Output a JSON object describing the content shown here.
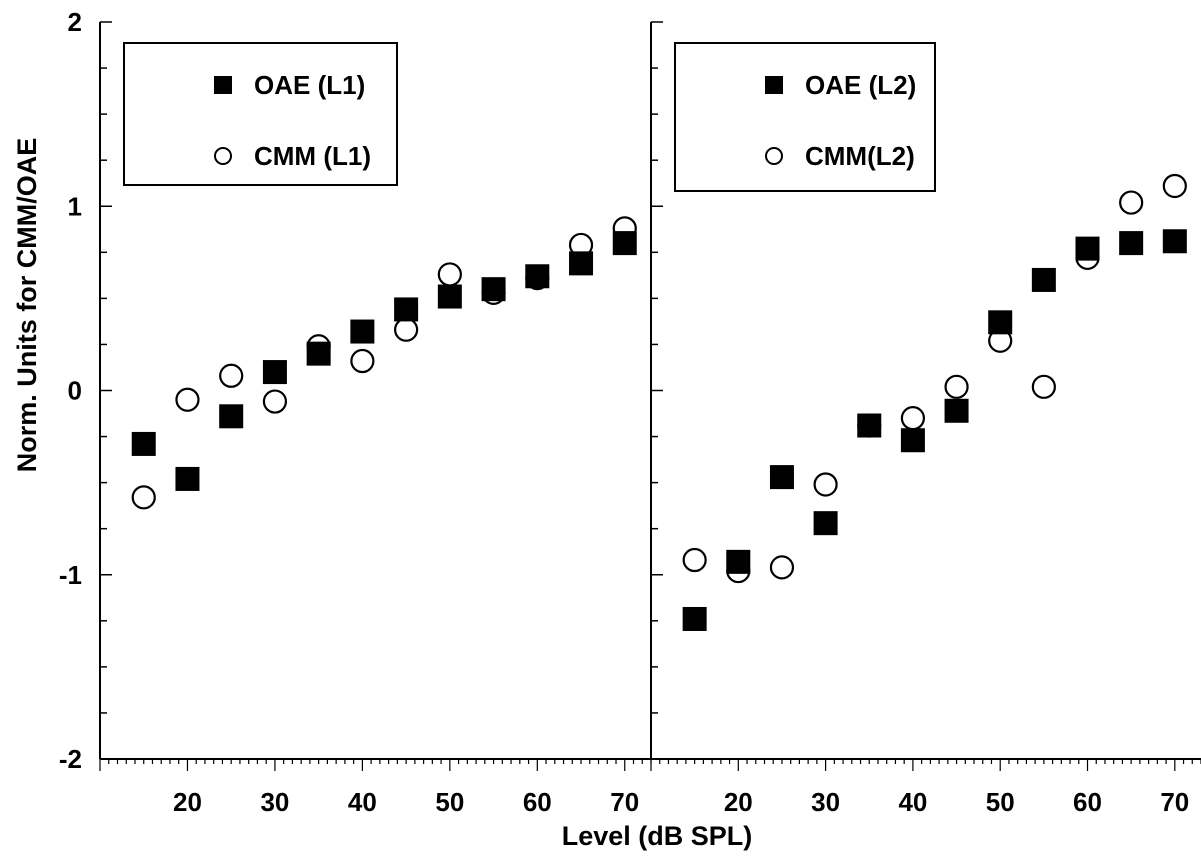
{
  "colors": {
    "background": "#ffffff",
    "ink": "#000000"
  },
  "chart_data": {
    "type": "scatter",
    "ylabel": "Norm. Units for CMM/OAE",
    "xlabel": "Level (dB SPL)",
    "ylim": [
      -2,
      2
    ],
    "y_ticks": [
      "2",
      "1",
      "0",
      "-1",
      "-2"
    ],
    "x_ticks": [
      "20",
      "30",
      "40",
      "50",
      "60",
      "70"
    ],
    "xlim": [
      10,
      73
    ],
    "grid": false,
    "panels": [
      {
        "legend_position": "top-left",
        "series": [
          {
            "name": "OAE (L1)",
            "marker": "filled-square",
            "x": [
              15,
              20,
              25,
              30,
              35,
              40,
              45,
              50,
              55,
              60,
              65,
              70
            ],
            "y": [
              -0.29,
              -0.48,
              -0.14,
              0.1,
              0.2,
              0.32,
              0.44,
              0.51,
              0.55,
              0.62,
              0.69,
              0.8
            ]
          },
          {
            "name": "CMM (L1)",
            "marker": "open-circle",
            "x": [
              15,
              20,
              25,
              30,
              35,
              40,
              45,
              50,
              55,
              60,
              65,
              70
            ],
            "y": [
              -0.58,
              -0.05,
              0.08,
              -0.06,
              0.24,
              0.16,
              0.33,
              0.63,
              0.53,
              0.61,
              0.79,
              0.88
            ]
          }
        ]
      },
      {
        "legend_position": "top-left",
        "series": [
          {
            "name": "OAE (L2)",
            "marker": "filled-square",
            "x": [
              15,
              20,
              25,
              30,
              35,
              40,
              45,
              50,
              55,
              60,
              65,
              70
            ],
            "y": [
              -1.24,
              -0.93,
              -0.47,
              -0.72,
              -0.19,
              -0.27,
              -0.11,
              0.37,
              0.6,
              0.77,
              0.8,
              0.81
            ]
          },
          {
            "name": "CMM(L2)",
            "marker": "open-circle",
            "x": [
              15,
              20,
              25,
              30,
              35,
              40,
              45,
              50,
              55,
              60,
              65,
              70
            ],
            "y": [
              -0.92,
              -0.98,
              -0.96,
              -0.51,
              -0.19,
              -0.15,
              0.02,
              0.27,
              0.02,
              0.72,
              1.02,
              1.11
            ]
          }
        ]
      }
    ]
  }
}
